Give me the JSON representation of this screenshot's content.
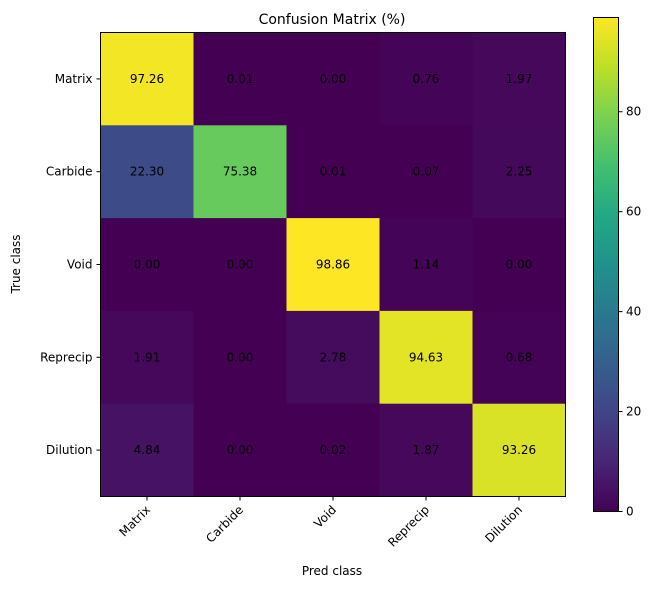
{
  "chart_data": {
    "type": "heatmap",
    "title": "Confusion Matrix (%)",
    "xlabel": "Pred class",
    "ylabel": "True class",
    "x_categories": [
      "Matrix",
      "Carbide",
      "Void",
      "Reprecip",
      "Dilution"
    ],
    "y_categories": [
      "Matrix",
      "Carbide",
      "Void",
      "Reprecip",
      "Dilution"
    ],
    "values": [
      [
        97.26,
        0.01,
        0.0,
        0.76,
        1.97
      ],
      [
        22.3,
        75.38,
        0.01,
        0.07,
        2.25
      ],
      [
        0.0,
        0.0,
        98.86,
        1.14,
        0.0
      ],
      [
        1.91,
        0.0,
        2.78,
        94.63,
        0.68
      ],
      [
        4.84,
        0.0,
        0.02,
        1.87,
        93.26
      ]
    ],
    "colormap": "viridis",
    "color_range": [
      0,
      98.86
    ],
    "colorbar_ticks": [
      "0",
      "20",
      "40",
      "60",
      "80"
    ],
    "grid": false
  }
}
